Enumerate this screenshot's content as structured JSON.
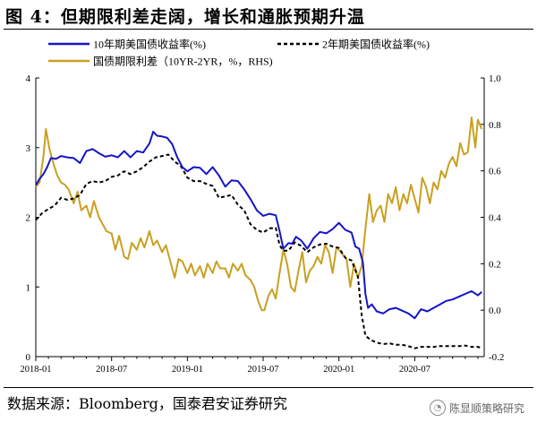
{
  "title": "图 4：但期限利差走阔，增长和通胀预期升温",
  "source": "数据来源：Bloomberg，国泰君安证券研究",
  "watermark": "陈显顺策略研究",
  "chart_data": {
    "type": "line",
    "left_axis": {
      "ylim": [
        0,
        4
      ],
      "ticks": [
        "0",
        "1",
        "2",
        "3",
        "4"
      ]
    },
    "right_axis": {
      "ylim": [
        -0.2,
        1.0
      ],
      "ticks": [
        "-0.2",
        "0.0",
        "0.2",
        "0.4",
        "0.6",
        "0.8",
        "1.0"
      ]
    },
    "x_ticks": [
      "2018-01",
      "2018-07",
      "2019-01",
      "2019-07",
      "2020-01",
      "2020-07"
    ],
    "x_tick_months": [
      0,
      6,
      12,
      18,
      24,
      30
    ],
    "x_range_months": [
      0,
      35.5
    ],
    "legend": [
      "10年期美国债收益率(%)",
      "2年期美国债收益率(%)",
      "国债期限利差（10YR-2YR，%，RHS)"
    ],
    "series": [
      {
        "name": "10年期美国债收益率(%)",
        "axis": "left",
        "color": "#1414c8",
        "style": "solid",
        "points": [
          [
            0,
            2.46
          ],
          [
            0.3,
            2.55
          ],
          [
            0.6,
            2.62
          ],
          [
            0.9,
            2.72
          ],
          [
            1.2,
            2.85
          ],
          [
            1.6,
            2.84
          ],
          [
            2,
            2.88
          ],
          [
            2.5,
            2.86
          ],
          [
            3,
            2.85
          ],
          [
            3.5,
            2.78
          ],
          [
            4,
            2.95
          ],
          [
            4.5,
            2.98
          ],
          [
            5,
            2.92
          ],
          [
            5.5,
            2.87
          ],
          [
            6,
            2.89
          ],
          [
            6.5,
            2.86
          ],
          [
            7,
            2.95
          ],
          [
            7.5,
            2.86
          ],
          [
            8,
            2.95
          ],
          [
            8.5,
            2.93
          ],
          [
            9,
            3.06
          ],
          [
            9.3,
            3.23
          ],
          [
            9.6,
            3.17
          ],
          [
            10,
            3.16
          ],
          [
            10.4,
            3.14
          ],
          [
            10.8,
            3.05
          ],
          [
            11.2,
            2.86
          ],
          [
            11.6,
            2.72
          ],
          [
            12,
            2.66
          ],
          [
            12.5,
            2.72
          ],
          [
            13,
            2.71
          ],
          [
            13.5,
            2.62
          ],
          [
            14,
            2.72
          ],
          [
            14.5,
            2.6
          ],
          [
            15,
            2.44
          ],
          [
            15.5,
            2.53
          ],
          [
            16,
            2.52
          ],
          [
            16.5,
            2.4
          ],
          [
            17,
            2.26
          ],
          [
            17.5,
            2.1
          ],
          [
            18,
            2.02
          ],
          [
            18.5,
            2.05
          ],
          [
            19,
            2.03
          ],
          [
            19.3,
            1.8
          ],
          [
            19.6,
            1.55
          ],
          [
            20,
            1.63
          ],
          [
            20.3,
            1.62
          ],
          [
            20.6,
            1.72
          ],
          [
            21,
            1.67
          ],
          [
            21.5,
            1.55
          ],
          [
            22,
            1.7
          ],
          [
            22.5,
            1.79
          ],
          [
            23,
            1.77
          ],
          [
            23.5,
            1.83
          ],
          [
            24,
            1.92
          ],
          [
            24.5,
            1.82
          ],
          [
            25,
            1.78
          ],
          [
            25.3,
            1.58
          ],
          [
            25.6,
            1.55
          ],
          [
            25.9,
            1.35
          ],
          [
            26.1,
            0.9
          ],
          [
            26.3,
            0.7
          ],
          [
            26.6,
            0.75
          ],
          [
            27,
            0.65
          ],
          [
            27.5,
            0.62
          ],
          [
            28,
            0.68
          ],
          [
            28.5,
            0.7
          ],
          [
            29,
            0.66
          ],
          [
            29.5,
            0.62
          ],
          [
            30,
            0.55
          ],
          [
            30.5,
            0.68
          ],
          [
            31,
            0.65
          ],
          [
            31.5,
            0.7
          ],
          [
            32,
            0.75
          ],
          [
            32.5,
            0.8
          ],
          [
            33,
            0.82
          ],
          [
            33.5,
            0.86
          ],
          [
            34,
            0.9
          ],
          [
            34.5,
            0.94
          ],
          [
            35,
            0.88
          ],
          [
            35.3,
            0.93
          ]
        ]
      },
      {
        "name": "2年期美国债收益率(%)",
        "axis": "left",
        "color": "#000000",
        "style": "dashed",
        "points": [
          [
            0,
            1.96
          ],
          [
            0.5,
            2.06
          ],
          [
            1,
            2.12
          ],
          [
            1.5,
            2.17
          ],
          [
            2,
            2.28
          ],
          [
            2.5,
            2.25
          ],
          [
            3,
            2.27
          ],
          [
            3.5,
            2.32
          ],
          [
            4,
            2.48
          ],
          [
            4.5,
            2.52
          ],
          [
            5,
            2.5
          ],
          [
            5.5,
            2.52
          ],
          [
            6,
            2.58
          ],
          [
            6.5,
            2.6
          ],
          [
            7,
            2.66
          ],
          [
            7.5,
            2.62
          ],
          [
            8,
            2.66
          ],
          [
            8.5,
            2.72
          ],
          [
            9,
            2.8
          ],
          [
            9.5,
            2.86
          ],
          [
            10,
            2.88
          ],
          [
            10.5,
            2.9
          ],
          [
            11,
            2.8
          ],
          [
            11.5,
            2.73
          ],
          [
            12,
            2.57
          ],
          [
            12.5,
            2.52
          ],
          [
            13,
            2.52
          ],
          [
            13.5,
            2.48
          ],
          [
            14,
            2.45
          ],
          [
            14.5,
            2.28
          ],
          [
            15,
            2.3
          ],
          [
            15.5,
            2.32
          ],
          [
            16,
            2.18
          ],
          [
            16.5,
            2.1
          ],
          [
            17,
            1.9
          ],
          [
            17.5,
            1.82
          ],
          [
            18,
            1.78
          ],
          [
            18.5,
            1.84
          ],
          [
            19,
            1.85
          ],
          [
            19.3,
            1.6
          ],
          [
            19.6,
            1.52
          ],
          [
            20,
            1.52
          ],
          [
            20.5,
            1.64
          ],
          [
            21,
            1.59
          ],
          [
            21.5,
            1.5
          ],
          [
            22,
            1.57
          ],
          [
            22.5,
            1.61
          ],
          [
            23,
            1.62
          ],
          [
            23.5,
            1.58
          ],
          [
            24,
            1.56
          ],
          [
            24.5,
            1.42
          ],
          [
            25,
            1.38
          ],
          [
            25.5,
            1.15
          ],
          [
            25.8,
            0.6
          ],
          [
            26.1,
            0.3
          ],
          [
            26.5,
            0.24
          ],
          [
            27,
            0.2
          ],
          [
            27.5,
            0.18
          ],
          [
            28,
            0.19
          ],
          [
            28.5,
            0.17
          ],
          [
            29,
            0.17
          ],
          [
            29.5,
            0.15
          ],
          [
            30,
            0.12
          ],
          [
            30.5,
            0.14
          ],
          [
            31,
            0.14
          ],
          [
            31.5,
            0.14
          ],
          [
            32,
            0.15
          ],
          [
            32.5,
            0.15
          ],
          [
            33,
            0.15
          ],
          [
            33.5,
            0.15
          ],
          [
            34,
            0.16
          ],
          [
            34.5,
            0.14
          ],
          [
            35,
            0.14
          ],
          [
            35.3,
            0.12
          ]
        ]
      },
      {
        "name": "国债期限利差（10YR-2YR，%，RHS)",
        "axis": "right",
        "color": "#c8a020",
        "style": "solid",
        "points": [
          [
            0,
            0.53
          ],
          [
            0.3,
            0.55
          ],
          [
            0.6,
            0.66
          ],
          [
            0.8,
            0.78
          ],
          [
            1.1,
            0.69
          ],
          [
            1.4,
            0.63
          ],
          [
            1.7,
            0.58
          ],
          [
            2,
            0.55
          ],
          [
            2.3,
            0.54
          ],
          [
            2.6,
            0.52
          ],
          [
            3,
            0.46
          ],
          [
            3.3,
            0.51
          ],
          [
            3.6,
            0.43
          ],
          [
            4,
            0.45
          ],
          [
            4.3,
            0.4
          ],
          [
            4.6,
            0.47
          ],
          [
            5,
            0.4
          ],
          [
            5.3,
            0.37
          ],
          [
            5.6,
            0.34
          ],
          [
            6,
            0.33
          ],
          [
            6.3,
            0.26
          ],
          [
            6.6,
            0.32
          ],
          [
            7,
            0.23
          ],
          [
            7.3,
            0.22
          ],
          [
            7.6,
            0.29
          ],
          [
            8,
            0.26
          ],
          [
            8.3,
            0.31
          ],
          [
            8.6,
            0.27
          ],
          [
            9,
            0.34
          ],
          [
            9.3,
            0.28
          ],
          [
            9.6,
            0.3
          ],
          [
            10,
            0.25
          ],
          [
            10.3,
            0.28
          ],
          [
            10.6,
            0.22
          ],
          [
            11,
            0.14
          ],
          [
            11.3,
            0.22
          ],
          [
            11.6,
            0.21
          ],
          [
            12,
            0.16
          ],
          [
            12.3,
            0.2
          ],
          [
            12.6,
            0.15
          ],
          [
            13,
            0.19
          ],
          [
            13.3,
            0.14
          ],
          [
            13.6,
            0.2
          ],
          [
            14,
            0.16
          ],
          [
            14.3,
            0.21
          ],
          [
            14.6,
            0.18
          ],
          [
            15,
            0.18
          ],
          [
            15.3,
            0.14
          ],
          [
            15.6,
            0.2
          ],
          [
            16,
            0.17
          ],
          [
            16.3,
            0.2
          ],
          [
            16.6,
            0.15
          ],
          [
            17,
            0.13
          ],
          [
            17.3,
            0.1
          ],
          [
            17.6,
            0.04
          ],
          [
            17.9,
            0.0
          ],
          [
            18.1,
            0.0
          ],
          [
            18.4,
            0.06
          ],
          [
            18.7,
            0.09
          ],
          [
            19,
            0.05
          ],
          [
            19.3,
            0.16
          ],
          [
            19.6,
            0.26
          ],
          [
            19.9,
            0.2
          ],
          [
            20.2,
            0.1
          ],
          [
            20.5,
            0.08
          ],
          [
            20.8,
            0.17
          ],
          [
            21.1,
            0.25
          ],
          [
            21.4,
            0.12
          ],
          [
            21.7,
            0.17
          ],
          [
            22,
            0.19
          ],
          [
            22.3,
            0.23
          ],
          [
            22.6,
            0.2
          ],
          [
            22.9,
            0.28
          ],
          [
            23.2,
            0.25
          ],
          [
            23.5,
            0.16
          ],
          [
            23.8,
            0.27
          ],
          [
            24,
            0.26
          ],
          [
            24.3,
            0.24
          ],
          [
            24.6,
            0.22
          ],
          [
            24.9,
            0.1
          ],
          [
            25.2,
            0.2
          ],
          [
            25.5,
            0.14
          ],
          [
            25.8,
            0.19
          ],
          [
            26.1,
            0.35
          ],
          [
            26.4,
            0.5
          ],
          [
            26.7,
            0.38
          ],
          [
            27,
            0.43
          ],
          [
            27.3,
            0.45
          ],
          [
            27.6,
            0.38
          ],
          [
            27.9,
            0.5
          ],
          [
            28.2,
            0.46
          ],
          [
            28.5,
            0.53
          ],
          [
            28.8,
            0.43
          ],
          [
            29.1,
            0.5
          ],
          [
            29.4,
            0.46
          ],
          [
            29.7,
            0.54
          ],
          [
            30,
            0.48
          ],
          [
            30.3,
            0.42
          ],
          [
            30.6,
            0.57
          ],
          [
            30.9,
            0.53
          ],
          [
            31.2,
            0.46
          ],
          [
            31.5,
            0.55
          ],
          [
            31.8,
            0.52
          ],
          [
            32.1,
            0.6
          ],
          [
            32.4,
            0.57
          ],
          [
            32.7,
            0.63
          ],
          [
            33,
            0.66
          ],
          [
            33.3,
            0.62
          ],
          [
            33.6,
            0.72
          ],
          [
            33.9,
            0.67
          ],
          [
            34.2,
            0.68
          ],
          [
            34.5,
            0.83
          ],
          [
            34.8,
            0.7
          ],
          [
            35,
            0.82
          ],
          [
            35.3,
            0.78
          ]
        ]
      }
    ]
  }
}
